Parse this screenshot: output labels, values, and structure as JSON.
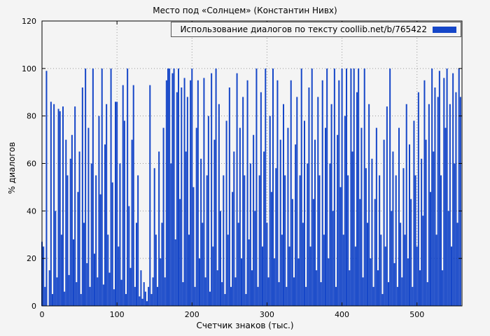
{
  "chart": {
    "background": "#f4f4f4",
    "grid_color": "#999999",
    "border_color": "#000000"
  },
  "chart_data": {
    "type": "bar",
    "title": "Место под «Солнцем» (Константин Нивх)",
    "legend": "Использование диалогов по тексту coollib.net/b/765422",
    "xlabel": "Счетчик знаков (тыс.)",
    "ylabel": "% диалогов",
    "xlim": [
      0,
      560
    ],
    "ylim": [
      0,
      120
    ],
    "xticks": [
      0,
      100,
      200,
      300,
      400,
      500
    ],
    "yticks": [
      0,
      20,
      40,
      60,
      80,
      100,
      120
    ],
    "grid": true,
    "legend_position": "top-right",
    "bar_color": "#1546c8",
    "x_start": 0,
    "x_step": 2,
    "values": [
      27,
      25,
      8,
      99,
      0,
      15,
      86,
      5,
      85,
      40,
      12,
      83,
      82,
      30,
      84,
      6,
      70,
      55,
      13,
      62,
      72,
      28,
      84,
      10,
      48,
      65,
      5,
      92,
      35,
      100,
      18,
      75,
      8,
      60,
      100,
      22,
      55,
      12,
      80,
      47,
      100,
      9,
      68,
      85,
      30,
      14,
      100,
      52,
      7,
      86,
      86,
      25,
      60,
      11,
      93,
      78,
      5,
      100,
      42,
      16,
      70,
      93,
      8,
      35,
      55,
      4,
      15,
      3,
      10,
      6,
      2,
      8,
      93,
      5,
      12,
      58,
      30,
      8,
      65,
      20,
      35,
      75,
      12,
      95,
      100,
      100,
      60,
      98,
      100,
      28,
      90,
      100,
      45,
      92,
      10,
      96,
      65,
      88,
      30,
      95,
      100,
      50,
      8,
      75,
      95,
      20,
      62,
      35,
      96,
      12,
      55,
      80,
      6,
      98,
      25,
      70,
      100,
      15,
      85,
      40,
      10,
      55,
      5,
      78,
      30,
      92,
      8,
      48,
      65,
      12,
      98,
      35,
      75,
      20,
      88,
      55,
      5,
      95,
      28,
      60,
      15,
      72,
      40,
      100,
      8,
      55,
      90,
      25,
      65,
      100,
      35,
      12,
      80,
      48,
      100,
      20,
      58,
      95,
      10,
      70,
      30,
      85,
      55,
      8,
      75,
      25,
      95,
      45,
      12,
      68,
      88,
      20,
      55,
      100,
      35,
      78,
      8,
      60,
      92,
      25,
      100,
      45,
      70,
      15,
      88,
      55,
      10,
      95,
      30,
      75,
      100,
      20,
      60,
      85,
      40,
      100,
      8,
      72,
      95,
      50,
      100,
      30,
      80,
      100,
      55,
      15,
      100,
      65,
      100,
      25,
      90,
      100,
      45,
      75,
      12,
      100,
      58,
      35,
      85,
      20,
      62,
      8,
      45,
      75,
      15,
      55,
      30,
      5,
      70,
      25,
      84,
      10,
      100,
      40,
      65,
      18,
      55,
      8,
      75,
      35,
      12,
      58,
      30,
      85,
      20,
      68,
      45,
      8,
      78,
      55,
      25,
      90,
      15,
      62,
      38,
      95,
      70,
      10,
      85,
      48,
      100,
      65,
      92,
      30,
      88,
      99,
      55,
      15,
      96,
      75,
      100,
      40,
      85,
      25,
      98,
      60,
      90,
      35,
      100,
      88
    ]
  }
}
